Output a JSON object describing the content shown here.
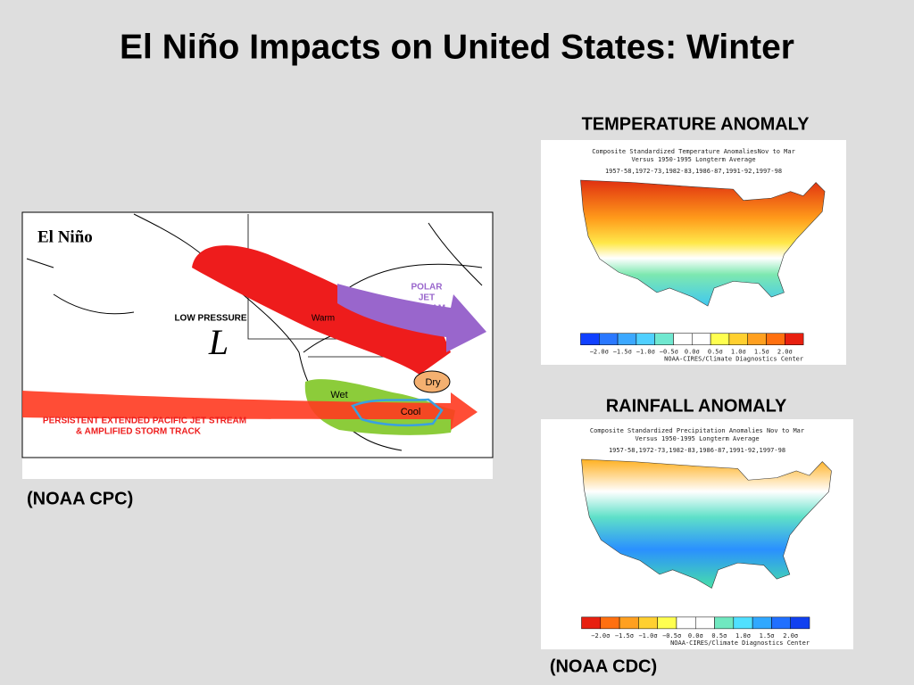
{
  "title": "El Niño Impacts on United States: Winter",
  "cpc_map": {
    "label": "El Niño",
    "low_pressure": "LOW PRESSURE",
    "low_symbol": "L",
    "warm": "Warm",
    "polar_jet": [
      "POLAR",
      "JET",
      "STREAM"
    ],
    "dry": "Dry",
    "wet": "Wet",
    "cool": "Cool",
    "pacific_jet": [
      "PERSISTENT EXTENDED PACIFIC JET STREAM",
      "& AMPLIFIED STORM TRACK"
    ]
  },
  "cpc_credit": "(NOAA CPC)",
  "temperature": {
    "heading": "TEMPERATURE ANOMALY",
    "map_title": [
      "Composite Standardized Temperature AnomaliesNov to Mar",
      "Versus 1950-1995 Longterm Average"
    ],
    "years": "1957-58,1972-73,1982-83,1986-87,1991-92,1997-98",
    "legend_labels": [
      "−2.0σ",
      "−1.5σ",
      "−1.0σ",
      "−0.5σ",
      "0.0σ",
      "0.5σ",
      "1.0σ",
      "1.5σ",
      "2.0σ"
    ],
    "source": "NOAA-CIRES/Climate Diagnostics Center"
  },
  "rainfall": {
    "heading": "RAINFALL ANOMALY",
    "map_title": [
      "Composite Standardized Precipitation Anomalies Nov to Mar",
      "Versus 1950-1995 Longterm Average"
    ],
    "years": "1957-58,1972-73,1982-83,1986-87,1991-92,1997-98",
    "legend_labels": [
      "−2.0σ",
      "−1.5σ",
      "−1.0σ",
      "−0.5σ",
      "0.0σ",
      "0.5σ",
      "1.0σ",
      "1.5σ",
      "2.0σ"
    ],
    "source": "NOAA-CIRES/Climate Diagnostics Center"
  },
  "cdc_credit": "(NOAA CDC)"
}
